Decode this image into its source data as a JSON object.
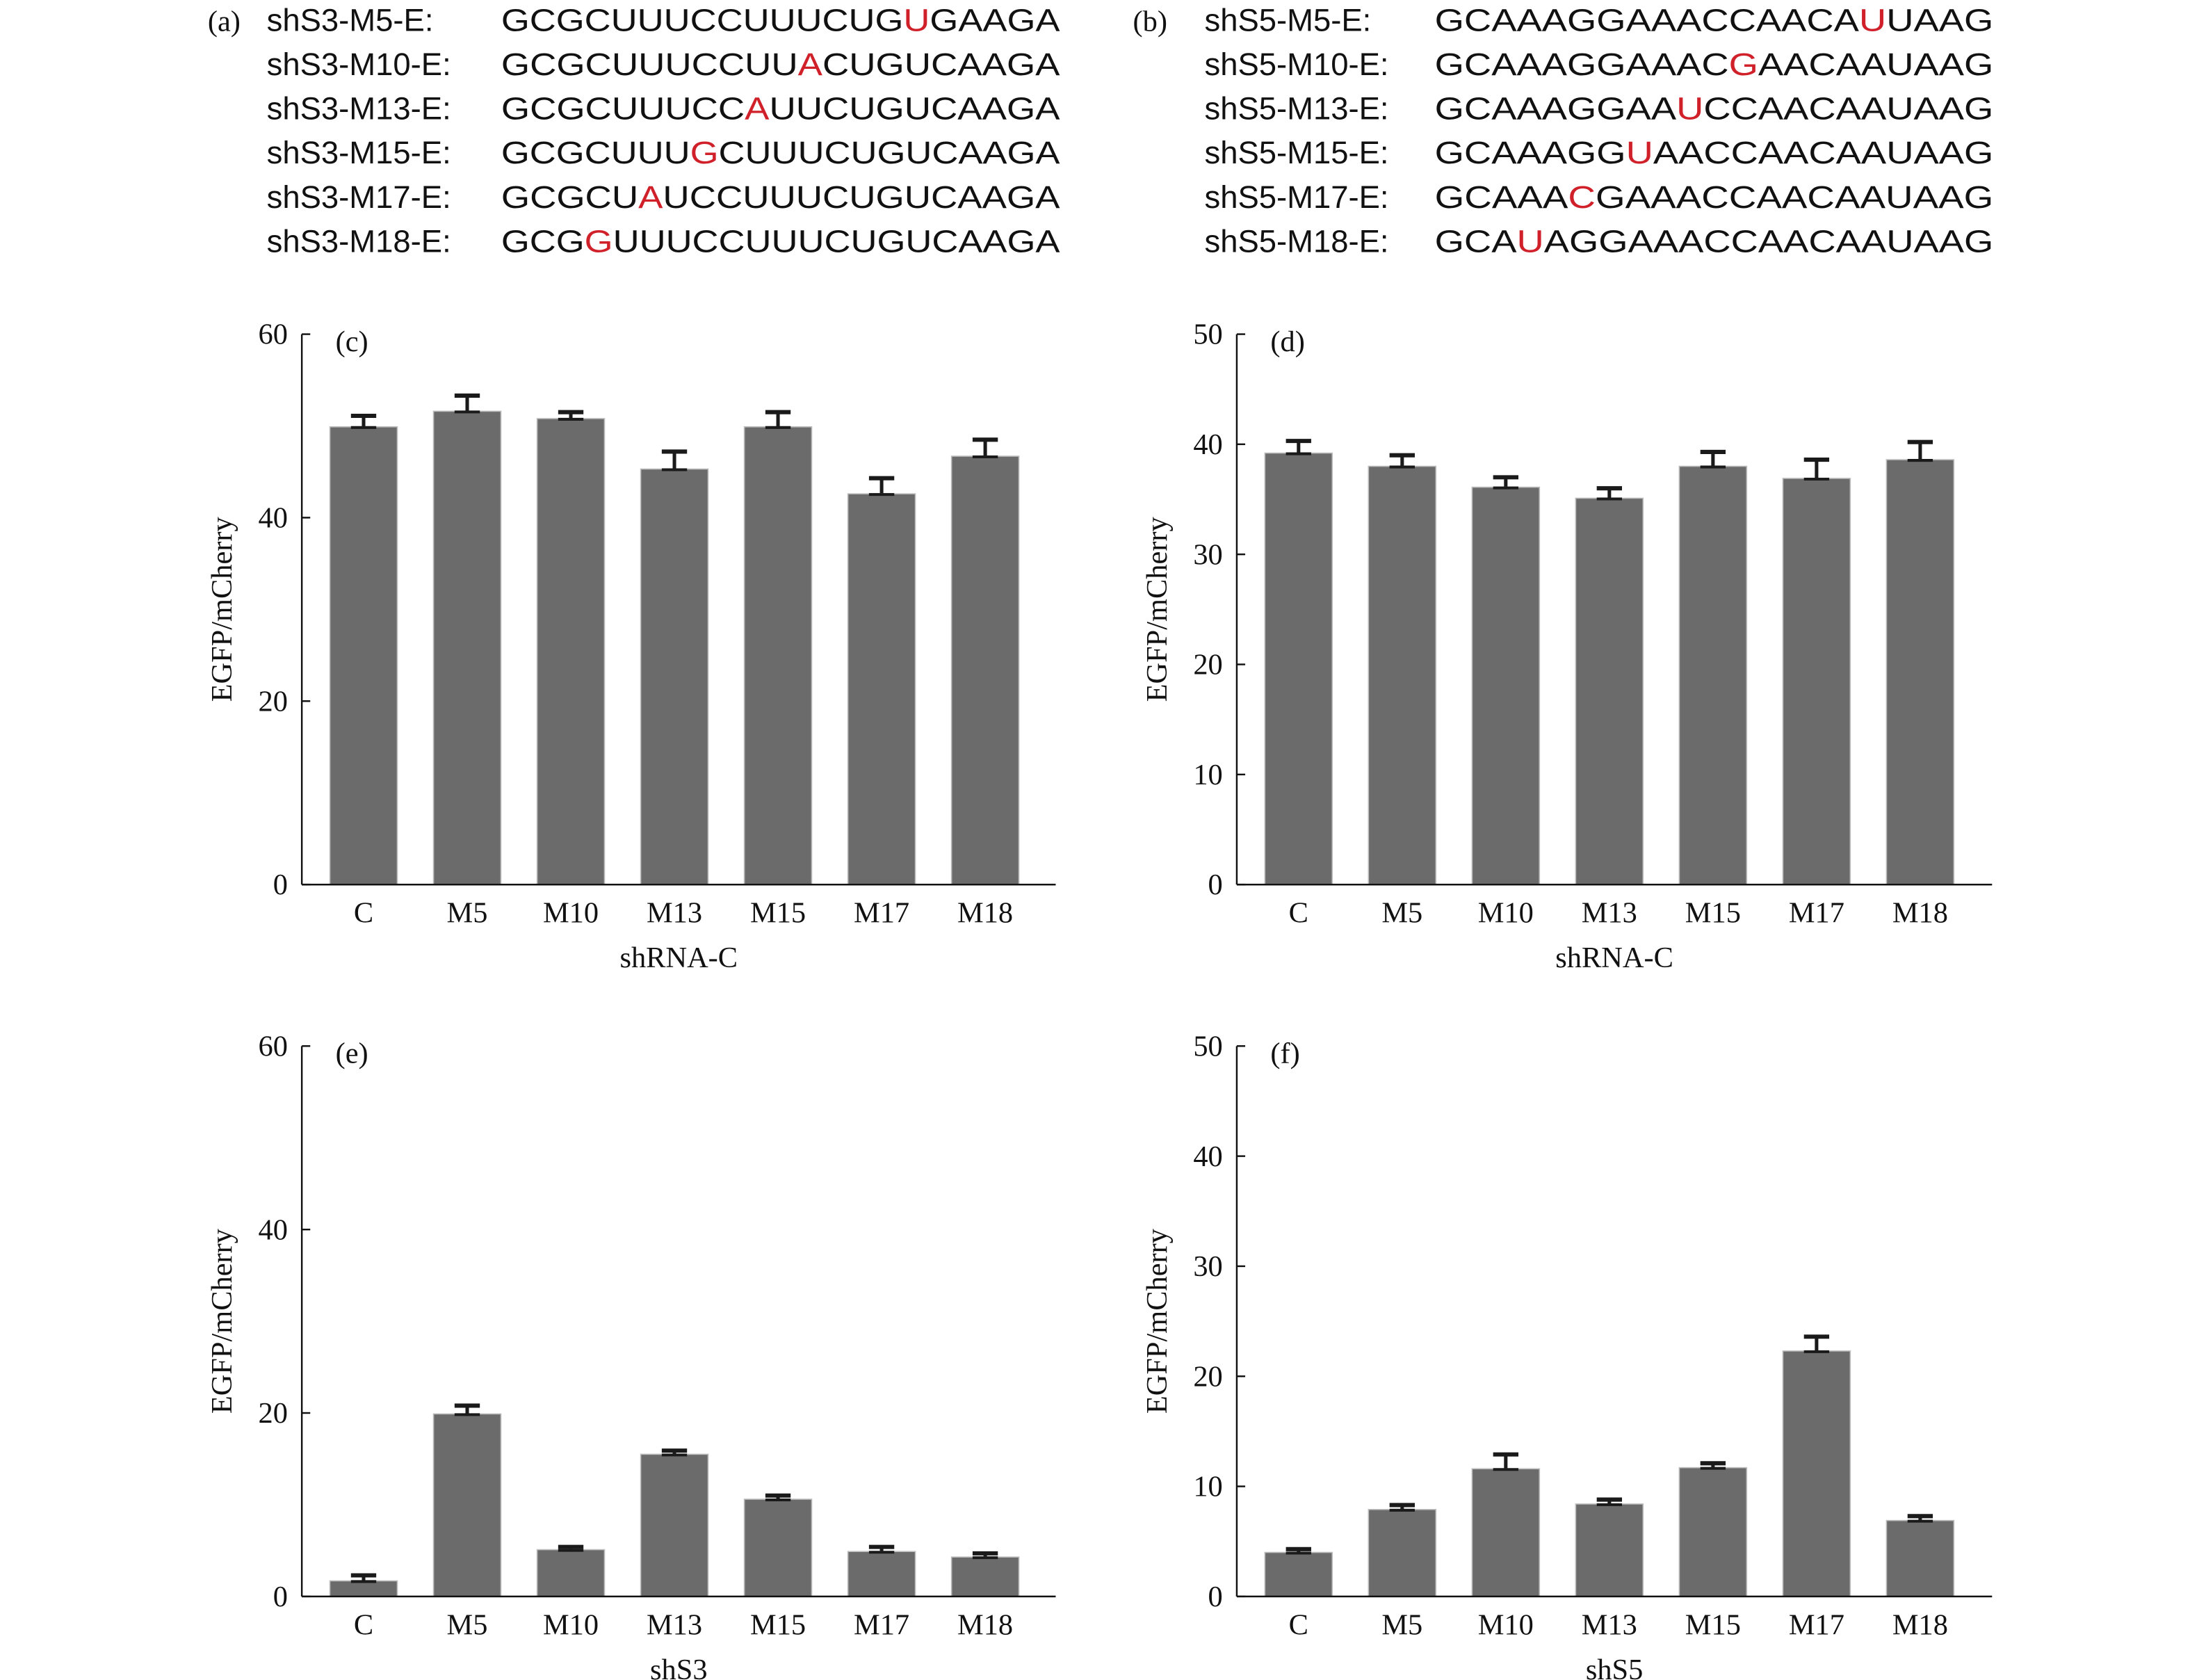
{
  "sequences": [
    {
      "panel": "(a)",
      "rows": [
        {
          "name": "shS3-M5-E:",
          "pre": "GCGCUUUCCUUUCUG",
          "mut": "U",
          "post": "GAAGA"
        },
        {
          "name": "shS3-M10-E:",
          "pre": "GCGCUUUCCUU",
          "mut": "A",
          "post": "CUGUCAAGA"
        },
        {
          "name": "shS3-M13-E:",
          "pre": "GCGCUUUCC",
          "mut": "A",
          "post": "UUCUGUCAAGA"
        },
        {
          "name": "shS3-M15-E:",
          "pre": "GCGCUUU",
          "mut": "G",
          "post": "CUUUCUGUCAAGA"
        },
        {
          "name": "shS3-M17-E:",
          "pre": "GCGCU",
          "mut": "A",
          "post": "UCCUUUCUGUCAAGA"
        },
        {
          "name": "shS3-M18-E:",
          "pre": "GCG",
          "mut": "G",
          "post": "UUUCCUUUCUGUCAAGA"
        }
      ]
    },
    {
      "panel": "(b)",
      "rows": [
        {
          "name": "shS5-M5-E:",
          "pre": "GCAAAGGAAACCAACA",
          "mut": "U",
          "post": "UAAG"
        },
        {
          "name": "shS5-M10-E:",
          "pre": "GCAAAGGAAAC",
          "mut": "G",
          "post": "AACAAUAAG"
        },
        {
          "name": "shS5-M13-E:",
          "pre": "GCAAAGGAA",
          "mut": "U",
          "post": "CCAACAAUAAG"
        },
        {
          "name": "shS5-M15-E:",
          "pre": "GCAAAGG",
          "mut": "U",
          "post": "AACCAACAAUAAG"
        },
        {
          "name": "shS5-M17-E:",
          "pre": "GCAAA",
          "mut": "C",
          "post": "GAAACCAACAAUAAG"
        },
        {
          "name": "shS5-M18-E:",
          "pre": "GCA",
          "mut": "U",
          "post": "AGGAAACCAACAAUAAG"
        }
      ]
    }
  ],
  "colors": {
    "bar": "#6b6b6b",
    "error": "#1a1a1a",
    "mutation": "#d0202a"
  },
  "chart_data": [
    {
      "type": "bar",
      "panel": "(c)",
      "categories": [
        "C",
        "M5",
        "M10",
        "M13",
        "M15",
        "M17",
        "M18"
      ],
      "values": [
        49.9,
        51.6,
        50.8,
        45.3,
        49.9,
        42.6,
        46.7
      ],
      "errors": [
        1.2,
        1.7,
        0.7,
        1.9,
        1.6,
        1.7,
        1.8
      ],
      "xlabel": "shRNA-C",
      "ylabel": "EGFP/mCherry",
      "ylim": [
        0,
        60
      ],
      "yticks": [
        "0",
        "20",
        "40",
        "60"
      ]
    },
    {
      "type": "bar",
      "panel": "(d)",
      "categories": [
        "C",
        "M5",
        "M10",
        "M13",
        "M15",
        "M17",
        "M18"
      ],
      "values": [
        39.2,
        38.0,
        36.1,
        35.1,
        38.0,
        36.9,
        38.6
      ],
      "errors": [
        1.1,
        1.0,
        0.9,
        0.9,
        1.3,
        1.7,
        1.6
      ],
      "xlabel": "shRNA-C",
      "ylabel": "EGFP/mCherry",
      "ylim": [
        0,
        50
      ],
      "yticks": [
        "0",
        "10",
        "20",
        "30",
        "40",
        "50"
      ]
    },
    {
      "type": "bar",
      "panel": "(e)",
      "categories": [
        "C",
        "M5",
        "M10",
        "M13",
        "M15",
        "M17",
        "M18"
      ],
      "values": [
        1.7,
        19.9,
        5.1,
        15.5,
        10.6,
        4.9,
        4.3
      ],
      "errors": [
        0.6,
        0.9,
        0.3,
        0.4,
        0.4,
        0.5,
        0.4
      ],
      "xlabel": "shS3",
      "ylabel": "EGFP/mCherry",
      "ylim": [
        0,
        60
      ],
      "yticks": [
        "0",
        "20",
        "40",
        "60"
      ]
    },
    {
      "type": "bar",
      "panel": "(f)",
      "categories": [
        "C",
        "M5",
        "M10",
        "M13",
        "M15",
        "M17",
        "M18"
      ],
      "values": [
        4.0,
        7.9,
        11.6,
        8.4,
        11.7,
        22.3,
        6.9
      ],
      "errors": [
        0.3,
        0.4,
        1.3,
        0.4,
        0.4,
        1.3,
        0.4
      ],
      "xlabel": "shS5",
      "ylabel": "EGFP/mCherry",
      "ylim": [
        0,
        50
      ],
      "yticks": [
        "0",
        "10",
        "20",
        "30",
        "40",
        "50"
      ]
    }
  ]
}
